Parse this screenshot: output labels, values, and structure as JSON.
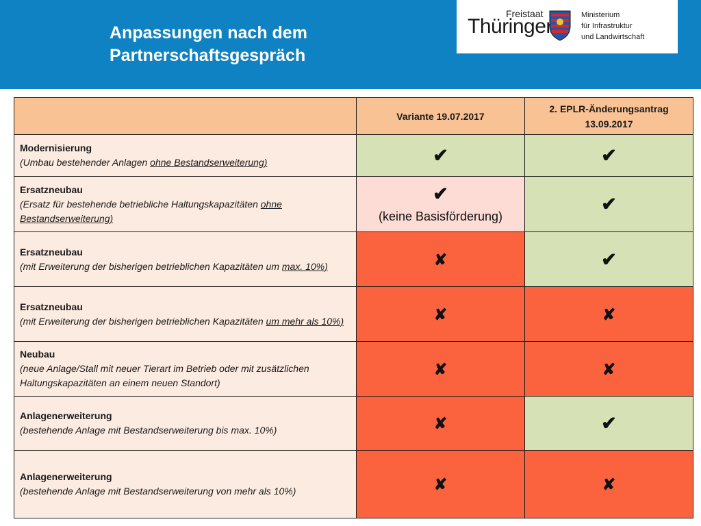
{
  "header": {
    "title_line1": "Anpassungen nach dem",
    "title_line2": "Partnerschaftsgespräch"
  },
  "logo": {
    "freistaat": "Freistaat",
    "thuringen": "Thüringen",
    "ministry_line1": "Ministerium",
    "ministry_line2": "für Infrastruktur",
    "ministry_line3": "und Landwirtschaft"
  },
  "table": {
    "col1_header": "Variante 19.07.2017",
    "col2_header_line1": "2. EPLR-Änderungsantrag",
    "col2_header_line2": "13.09.2017",
    "rows": [
      {
        "heading": "Modernisierung",
        "desc_a": "(Umbau bestehender Anlagen ",
        "desc_u": "ohne Bestandserweiterung)",
        "desc_b": "",
        "v1": "✔",
        "v2": "✔",
        "v1_note": ""
      },
      {
        "heading": "Ersatzneubau",
        "desc_a": "(Ersatz für bestehende betriebliche Haltungskapazitäten ",
        "desc_u": "ohne Bestandserweiterung)",
        "desc_b": "",
        "v1": "✔",
        "v2": "✔",
        "v1_note": "(keine Basisförderung)"
      },
      {
        "heading": "Ersatzneubau",
        "desc_a": "(mit Erweiterung der bisherigen betrieblichen Kapazitäten um ",
        "desc_u": "max. 10%)",
        "desc_b": "",
        "v1": "✘",
        "v2": "✔",
        "v1_note": ""
      },
      {
        "heading": "Ersatzneubau",
        "desc_a": "(mit Erweiterung der bisherigen betrieblichen Kapazitäten ",
        "desc_u": "um mehr als 10%)",
        "desc_b": "",
        "v1": "✘",
        "v2": "✘",
        "v1_note": ""
      },
      {
        "heading": "Neubau",
        "desc_a": "(neue Anlage/Stall mit neuer Tierart im Betrieb oder mit zusätzlichen Haltungskapazitäten an einem neuen Standort)",
        "desc_u": "",
        "desc_b": "",
        "v1": "✘",
        "v2": "✘",
        "v1_note": ""
      },
      {
        "heading": "Anlagenerweiterung",
        "desc_a": "(bestehende Anlage mit Bestandserweiterung bis max. 10%)",
        "desc_u": "",
        "desc_b": "",
        "v1": "✘",
        "v2": "✔",
        "v1_note": ""
      },
      {
        "heading": "Anlagenerweiterung",
        "desc_a": "(bestehende Anlage mit Bestandserweiterung von mehr als 10%)",
        "desc_u": "",
        "desc_b": "",
        "v1": "✘",
        "v2": "✘",
        "v1_note": ""
      }
    ]
  },
  "colors": {
    "header_bg": "#0f82c3",
    "table_header": "#f9c294",
    "label_bg": "#fcebe1",
    "yes_green": "#d6e2b5",
    "partial_pink": "#fcdcd5",
    "no_red": "#fb633f"
  },
  "icons": {
    "yes": "check-icon",
    "no": "cross-icon",
    "crest": "coat-of-arms-icon"
  }
}
